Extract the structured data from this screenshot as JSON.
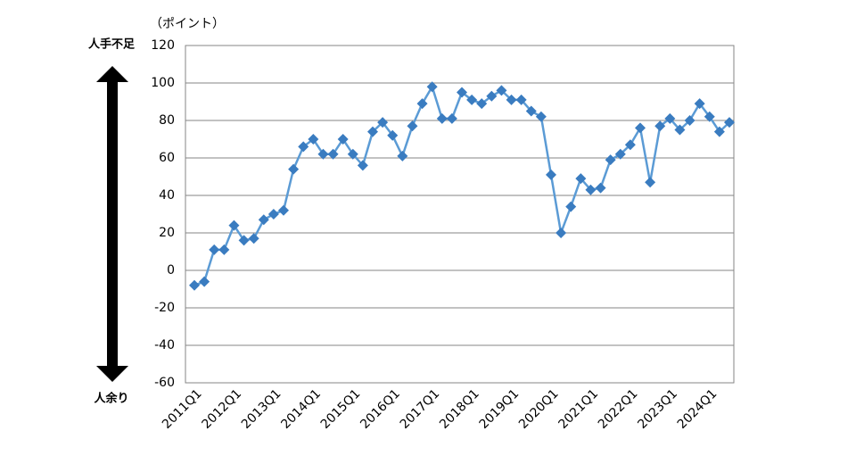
{
  "chart_data": {
    "type": "line",
    "unit_label": "（ポイント）",
    "upper_label": "人手不足",
    "lower_label": "人余り",
    "categories": [
      "2011Q1",
      null,
      null,
      null,
      "2012Q1",
      null,
      null,
      null,
      "2013Q1",
      null,
      null,
      null,
      "2014Q1",
      null,
      null,
      null,
      "2015Q1",
      null,
      null,
      null,
      "2016Q1",
      null,
      null,
      null,
      "2017Q1",
      null,
      null,
      null,
      "2018Q1",
      null,
      null,
      null,
      "2019Q1",
      null,
      null,
      null,
      "2020Q1",
      null,
      null,
      null,
      "2021Q1",
      null,
      null,
      null,
      "2022Q1",
      null,
      null,
      null,
      "2023Q1",
      null,
      null,
      null,
      "2024Q1",
      null,
      null
    ],
    "series": [
      {
        "color": "#3a7cc0",
        "values": [
          -8,
          -6,
          11,
          11,
          24,
          16,
          17,
          27,
          30,
          32,
          54,
          66,
          70,
          62,
          62,
          70,
          62,
          56,
          74,
          79,
          72,
          61,
          77,
          89,
          98,
          81,
          81,
          95,
          91,
          89,
          93,
          96,
          91,
          91,
          85,
          82,
          51,
          20,
          34,
          49,
          43,
          44,
          59,
          62,
          67,
          76,
          47,
          77,
          81,
          75,
          80,
          89,
          82,
          74,
          79
        ]
      }
    ],
    "ylim": [
      -60,
      120
    ],
    "yticks": [
      -60,
      -40,
      -20,
      0,
      20,
      40,
      60,
      80,
      100,
      120
    ],
    "grid": true
  }
}
